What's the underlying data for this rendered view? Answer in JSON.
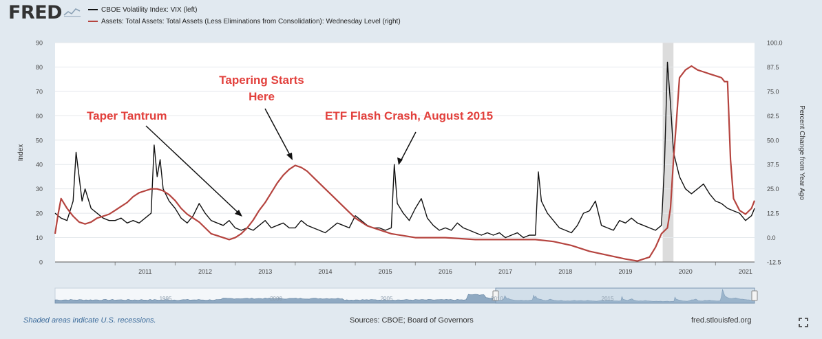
{
  "header": {
    "logo_text": "FRED",
    "legend": [
      {
        "label": "CBOE Volatility Index: VIX (left)",
        "color": "#111111"
      },
      {
        "label": "Assets: Total Assets: Total Assets (Less Eliminations from Consolidation): Wednesday Level (right)",
        "color": "#b5443f"
      }
    ]
  },
  "footer": {
    "recession_note": "Shaded areas indicate U.S. recessions.",
    "sources": "Sources: CBOE; Board of Governors",
    "site": "fred.stlouisfed.org"
  },
  "navigator": {
    "labels": [
      "1995",
      "2000",
      "2005",
      "2010",
      "2015"
    ]
  },
  "chart_data": {
    "type": "line",
    "xlim": [
      2010.0,
      2021.65
    ],
    "x_ticks": [
      "2011",
      "2012",
      "2013",
      "2014",
      "2015",
      "2016",
      "2017",
      "2018",
      "2019",
      "2020",
      "2021"
    ],
    "left_axis": {
      "label": "Index",
      "ylim": [
        0,
        90
      ],
      "ticks": [
        "0",
        "10",
        "20",
        "30",
        "40",
        "50",
        "60",
        "70",
        "80",
        "90"
      ]
    },
    "right_axis": {
      "label": "Percent Change from Year Ago",
      "ylim": [
        -12.5,
        100.0
      ],
      "ticks": [
        "-12.5",
        "0.0",
        "12.5",
        "25.0",
        "37.5",
        "50.0",
        "62.5",
        "75.0",
        "87.5",
        "100.0"
      ]
    },
    "recessions": [
      [
        2020.12,
        2020.3
      ]
    ],
    "series": [
      {
        "name": "CBOE Volatility Index: VIX (left)",
        "axis": "left",
        "color": "#111111",
        "x": [
          2010.0,
          2010.1,
          2010.2,
          2010.3,
          2010.35,
          2010.4,
          2010.45,
          2010.5,
          2010.6,
          2010.7,
          2010.8,
          2010.9,
          2011.0,
          2011.1,
          2011.2,
          2011.3,
          2011.4,
          2011.5,
          2011.6,
          2011.65,
          2011.7,
          2011.75,
          2011.8,
          2011.9,
          2012.0,
          2012.1,
          2012.2,
          2012.3,
          2012.4,
          2012.5,
          2012.6,
          2012.7,
          2012.8,
          2012.9,
          2013.0,
          2013.1,
          2013.2,
          2013.3,
          2013.4,
          2013.5,
          2013.6,
          2013.7,
          2013.8,
          2013.9,
          2014.0,
          2014.1,
          2014.2,
          2014.3,
          2014.4,
          2014.5,
          2014.6,
          2014.7,
          2014.8,
          2014.9,
          2015.0,
          2015.1,
          2015.2,
          2015.3,
          2015.4,
          2015.5,
          2015.6,
          2015.65,
          2015.7,
          2015.8,
          2015.9,
          2016.0,
          2016.1,
          2016.2,
          2016.3,
          2016.4,
          2016.5,
          2016.6,
          2016.7,
          2016.8,
          2016.9,
          2017.0,
          2017.1,
          2017.2,
          2017.3,
          2017.4,
          2017.5,
          2017.6,
          2017.7,
          2017.8,
          2017.9,
          2018.0,
          2018.05,
          2018.1,
          2018.2,
          2018.3,
          2018.4,
          2018.5,
          2018.6,
          2018.7,
          2018.8,
          2018.9,
          2019.0,
          2019.1,
          2019.2,
          2019.3,
          2019.4,
          2019.5,
          2019.6,
          2019.7,
          2019.8,
          2019.9,
          2020.0,
          2020.1,
          2020.15,
          2020.2,
          2020.25,
          2020.3,
          2020.4,
          2020.5,
          2020.6,
          2020.7,
          2020.8,
          2020.9,
          2021.0,
          2021.1,
          2021.2,
          2021.3,
          2021.4,
          2021.5,
          2021.6,
          2021.65
        ],
        "values": [
          20,
          18,
          17,
          25,
          45,
          35,
          25,
          30,
          22,
          20,
          18,
          17,
          17,
          18,
          16,
          17,
          16,
          18,
          20,
          48,
          35,
          42,
          30,
          25,
          22,
          18,
          16,
          19,
          24,
          20,
          17,
          16,
          15,
          17,
          14,
          13,
          14,
          13,
          15,
          17,
          14,
          15,
          16,
          14,
          14,
          17,
          15,
          14,
          13,
          12,
          14,
          16,
          15,
          14,
          19,
          17,
          15,
          14,
          14,
          13,
          14,
          40,
          24,
          20,
          17,
          22,
          26,
          18,
          15,
          13,
          14,
          13,
          16,
          14,
          13,
          12,
          11,
          12,
          11,
          12,
          10,
          11,
          12,
          10,
          11,
          11,
          37,
          25,
          20,
          17,
          14,
          13,
          12,
          15,
          20,
          21,
          25,
          15,
          14,
          13,
          17,
          16,
          18,
          16,
          15,
          14,
          13,
          15,
          40,
          82,
          65,
          45,
          35,
          30,
          28,
          30,
          32,
          28,
          25,
          24,
          22,
          21,
          20,
          17,
          19,
          22
        ]
      },
      {
        "name": "Assets: Total Assets: Total Assets (Less Eliminations from Consolidation): Wednesday Level (right)",
        "axis": "right",
        "color": "#b5443f",
        "x": [
          2010.0,
          2010.05,
          2010.1,
          2010.2,
          2010.3,
          2010.4,
          2010.5,
          2010.6,
          2010.7,
          2010.8,
          2010.9,
          2011.0,
          2011.1,
          2011.2,
          2011.3,
          2011.4,
          2011.5,
          2011.6,
          2011.7,
          2011.8,
          2011.9,
          2012.0,
          2012.1,
          2012.2,
          2012.3,
          2012.4,
          2012.5,
          2012.6,
          2012.7,
          2012.8,
          2012.9,
          2013.0,
          2013.1,
          2013.2,
          2013.3,
          2013.4,
          2013.5,
          2013.6,
          2013.7,
          2013.8,
          2013.9,
          2014.0,
          2014.1,
          2014.2,
          2014.3,
          2014.4,
          2014.5,
          2014.6,
          2014.7,
          2014.8,
          2014.9,
          2015.0,
          2015.2,
          2015.4,
          2015.6,
          2015.8,
          2016.0,
          2016.5,
          2017.0,
          2017.5,
          2018.0,
          2018.3,
          2018.6,
          2018.9,
          2019.2,
          2019.5,
          2019.7,
          2019.8,
          2019.9,
          2020.0,
          2020.1,
          2020.2,
          2020.25,
          2020.3,
          2020.35,
          2020.4,
          2020.5,
          2020.6,
          2020.7,
          2020.8,
          2020.9,
          2021.0,
          2021.1,
          2021.15,
          2021.2,
          2021.25,
          2021.3,
          2021.4,
          2021.5,
          2021.6,
          2021.65
        ],
        "values": [
          2,
          12,
          20,
          15,
          11,
          8,
          7,
          8,
          10,
          11,
          12,
          14,
          16,
          18,
          21,
          23,
          24,
          25,
          25,
          24,
          22,
          19,
          15,
          12,
          10,
          8,
          5,
          2,
          1,
          0,
          -1,
          0,
          2,
          5,
          9,
          14,
          18,
          23,
          28,
          32,
          35,
          37,
          36,
          34,
          31,
          28,
          25,
          22,
          19,
          16,
          13,
          10,
          6,
          4,
          2,
          1,
          0,
          0,
          -1,
          -1,
          -1,
          -2,
          -4,
          -7,
          -9,
          -11,
          -12,
          -11,
          -10,
          -5,
          2,
          5,
          15,
          40,
          60,
          82,
          86,
          88,
          86,
          85,
          84,
          83,
          82,
          80,
          80,
          40,
          20,
          14,
          12,
          15,
          19
        ]
      }
    ],
    "annotations": [
      {
        "text": "Taper Tantrum"
      },
      {
        "text": "Tapering Starts"
      },
      {
        "text": "Here"
      },
      {
        "text": "ETF Flash Crash, August 2015"
      }
    ]
  }
}
